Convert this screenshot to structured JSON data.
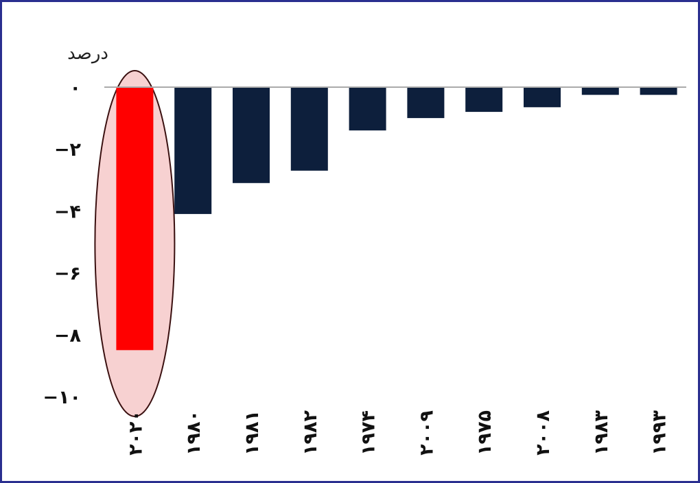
{
  "chart_data": {
    "type": "bar",
    "ylabel": "درصد",
    "categories": [
      "۲۰۲۰",
      "۱۹۸۰",
      "۱۹۸۱",
      "۱۹۸۲",
      "۱۹۷۴",
      "۲۰۰۹",
      "۱۹۷۵",
      "۲۰۰۸",
      "۱۹۸۳",
      "۱۹۹۳"
    ],
    "values": [
      -8.5,
      -4.1,
      -3.1,
      -2.7,
      -1.4,
      -1.0,
      -0.8,
      -0.65,
      -0.25,
      -0.25
    ],
    "ylim": [
      -10,
      0
    ],
    "yticks": [
      0,
      -2,
      -4,
      -6,
      -8,
      -10
    ],
    "ytick_labels": [
      "۰",
      "−۲",
      "−۴",
      "−۶",
      "−۸",
      "−۱۰"
    ],
    "highlight_index": 0,
    "colors": {
      "bar": "#0d1f3c",
      "highlight_bar": "#ff0000",
      "highlight_ellipse_fill": "#f5c6c6",
      "highlight_ellipse_stroke": "#3a1010",
      "zero_line": "#aaaaaa",
      "frame_border": "#2a2f8f"
    },
    "grid": false
  }
}
